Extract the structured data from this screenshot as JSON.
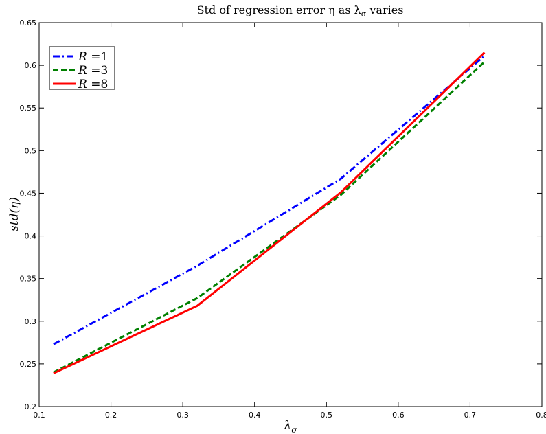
{
  "chart_data": {
    "type": "line",
    "title": "Std of regression error η as λσ varies",
    "xlabel": "λσ",
    "ylabel": "std(η)",
    "xlim": [
      0.1,
      0.8
    ],
    "ylim": [
      0.2,
      0.65
    ],
    "xticks": [
      "0.1",
      "0.2",
      "0.3",
      "0.4",
      "0.5",
      "0.6",
      "0.7",
      "0.8"
    ],
    "yticks": [
      "0.2",
      "0.25",
      "0.3",
      "0.35",
      "0.4",
      "0.45",
      "0.5",
      "0.55",
      "0.6",
      "0.65"
    ],
    "grid": false,
    "legend_position": "top-left",
    "series": [
      {
        "name": "R =1",
        "color": "#0000ff",
        "dash": "dash-dot",
        "x": [
          0.12,
          0.32,
          0.52,
          0.72
        ],
        "y": [
          0.273,
          0.365,
          0.467,
          0.611
        ]
      },
      {
        "name": "R =3",
        "color": "#008000",
        "dash": "dashed",
        "x": [
          0.12,
          0.32,
          0.52,
          0.72
        ],
        "y": [
          0.24,
          0.327,
          0.448,
          0.604
        ]
      },
      {
        "name": "R =8",
        "color": "#ff0000",
        "dash": "solid",
        "x": [
          0.12,
          0.32,
          0.52,
          0.72
        ],
        "y": [
          0.239,
          0.318,
          0.451,
          0.615
        ]
      }
    ]
  }
}
